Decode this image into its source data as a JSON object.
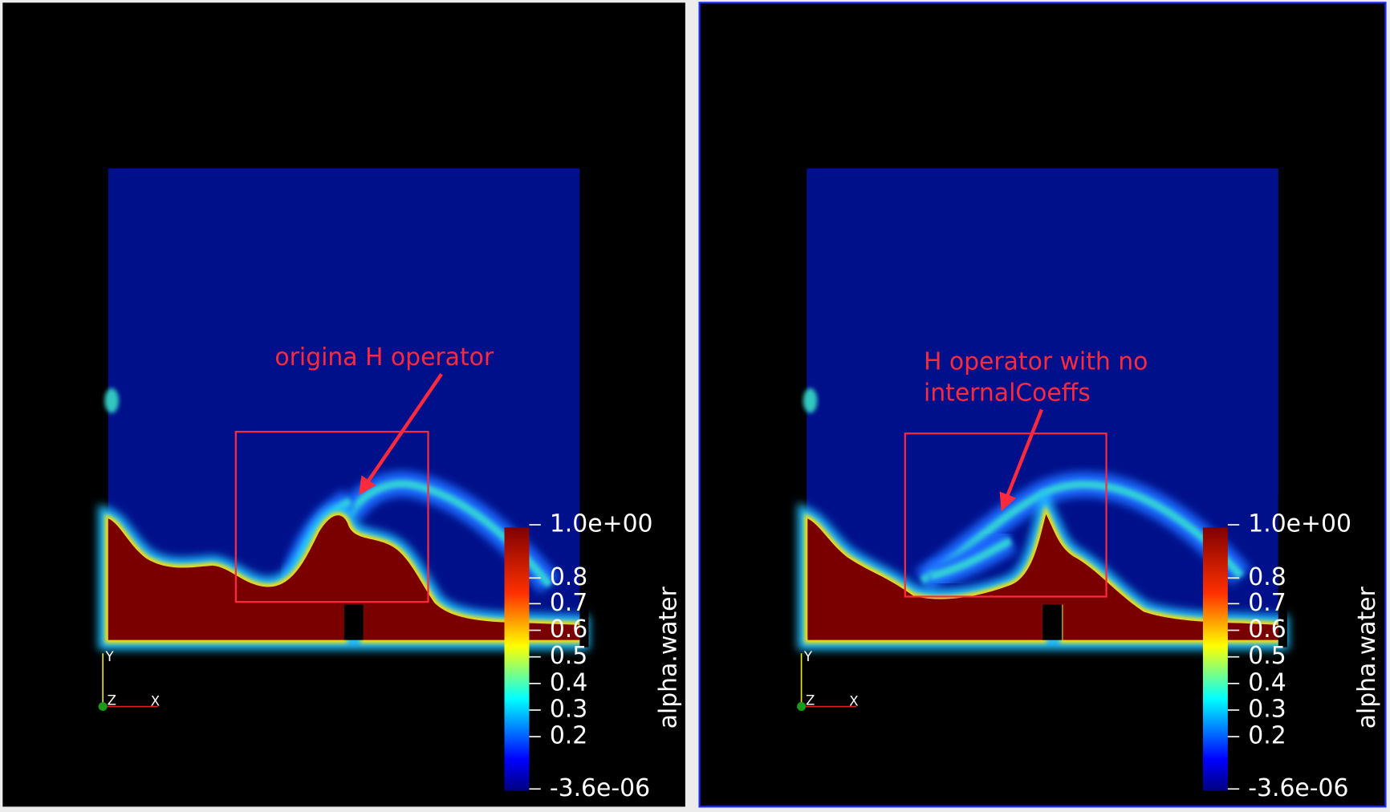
{
  "panels": [
    {
      "annotation": [
        "origina H operator"
      ],
      "colorbar": {
        "title": "alpha.water",
        "labels": [
          "1.0e+00",
          "0.8",
          "0.7",
          "0.6",
          "0.5",
          "0.4",
          "0.3",
          "0.2",
          "-3.6e-06"
        ]
      },
      "axes": [
        "Y",
        "Z",
        "X"
      ]
    },
    {
      "annotation": [
        "H operator with no",
        "internalCoeffs"
      ],
      "colorbar": {
        "title": "alpha.water",
        "labels": [
          "1.0e+00",
          "0.8",
          "0.7",
          "0.6",
          "0.5",
          "0.4",
          "0.3",
          "0.2",
          "-3.6e-06"
        ]
      },
      "axes": [
        "Y",
        "Z",
        "X"
      ]
    }
  ]
}
